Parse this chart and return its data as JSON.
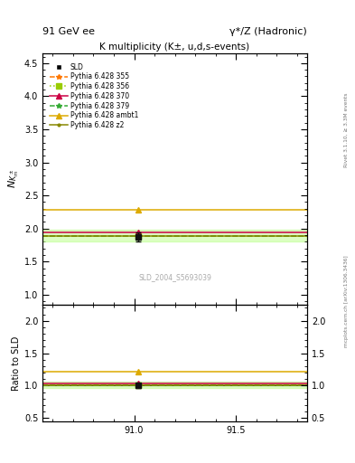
{
  "title_top": "91 GeV ee",
  "title_right": "γ*/Z (Hadronic)",
  "plot_title": "K multiplicity (K±, u,d,s-events)",
  "ylabel_main": "$N_{K^\\pm_m}$",
  "ylabel_ratio": "Ratio to SLD",
  "watermark": "SLD_2004_S5693039",
  "right_label_top": "Rivet 3.1.10, ≥ 3.3M events",
  "right_label_bot": "mcplots.cern.ch [arXiv:1306.3436]",
  "xlim": [
    90.55,
    91.85
  ],
  "xticks": [
    91.0,
    91.5
  ],
  "ylim_main": [
    0.85,
    4.65
  ],
  "yticks_main": [
    1.0,
    1.5,
    2.0,
    2.5,
    3.0,
    3.5,
    4.0,
    4.5
  ],
  "ylim_ratio": [
    0.45,
    2.25
  ],
  "yticks_ratio": [
    0.5,
    1.0,
    1.5,
    2.0
  ],
  "data_x": 91.02,
  "data_y": 1.875,
  "data_err": 0.065,
  "lines": [
    {
      "label": "Pythia 6.428 355",
      "y": 1.89,
      "color": "#ff7700",
      "linestyle": "--",
      "marker": "*",
      "marker_color": "#ff7700"
    },
    {
      "label": "Pythia 6.428 356",
      "y": 1.89,
      "color": "#99cc00",
      "linestyle": ":",
      "marker": "s",
      "marker_color": "#99cc00"
    },
    {
      "label": "Pythia 6.428 370",
      "y": 1.935,
      "color": "#cc0044",
      "linestyle": "-",
      "marker": "^",
      "marker_color": "#cc0044"
    },
    {
      "label": "Pythia 6.428 379",
      "y": 1.89,
      "color": "#33aa33",
      "linestyle": "--",
      "marker": "*",
      "marker_color": "#33aa33"
    },
    {
      "label": "Pythia 6.428 ambt1",
      "y": 2.285,
      "color": "#ddaa00",
      "linestyle": "-",
      "marker": "^",
      "marker_color": "#ddaa00"
    },
    {
      "label": "Pythia 6.428 z2",
      "y": 1.89,
      "color": "#888800",
      "linestyle": "-",
      "marker": ".",
      "marker_color": "#888800"
    }
  ],
  "band_y": 1.89,
  "band_half": 0.09,
  "band_color": "#bbff88",
  "band_alpha": 0.5,
  "sld_color": "#111111",
  "bg_color": "#ffffff"
}
